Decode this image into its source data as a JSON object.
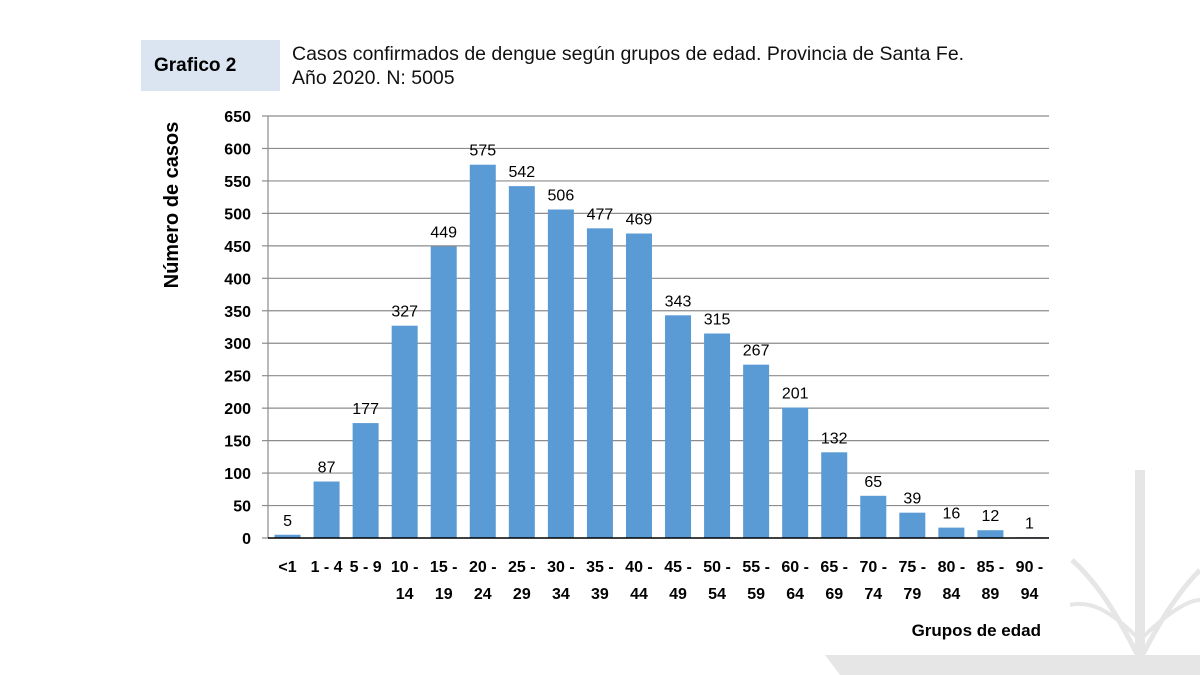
{
  "figure_label": "Grafico 2",
  "title_lines": [
    "Casos confirmados de dengue según grupos de edad. Provincia de Santa Fe.",
    "Año 2020. N: 5005"
  ],
  "colors": {
    "bar": "#5b9bd5",
    "grid": "#8c8c8c",
    "label_box": "#dbe5f1",
    "watermark": "#e6e6e6"
  },
  "chart_data": {
    "type": "bar",
    "title": "Casos confirmados de dengue según grupos de edad. Provincia de Santa Fe. Año 2020. N: 5005",
    "xlabel": "Grupos de edad",
    "ylabel": "Número de casos",
    "ylim": [
      0,
      650
    ],
    "yticks": [
      0,
      50,
      100,
      150,
      200,
      250,
      300,
      350,
      400,
      450,
      500,
      550,
      600,
      650
    ],
    "grid": true,
    "legend": "none",
    "categories": [
      "<1",
      "1 - 4",
      "5 - 9",
      "10 - 14",
      "15 - 19",
      "20 - 24",
      "25 - 29",
      "30 - 34",
      "35 - 39",
      "40 - 44",
      "45 - 49",
      "50 - 54",
      "55 - 59",
      "60 - 64",
      "65 - 69",
      "70 - 74",
      "75 - 79",
      "80 - 84",
      "85 - 89",
      "90 - 94"
    ],
    "tick_label_rows": [
      [
        "<1",
        "1 - 4",
        "5 - 9",
        "10 -",
        "15 -",
        "20 -",
        "25 -",
        "30 -",
        "35 -",
        "40 -",
        "45 -",
        "50 -",
        "55 -",
        "60 -",
        "65 -",
        "70 -",
        "75 -",
        "80 -",
        "85 -",
        "90 -"
      ],
      [
        "",
        "",
        "",
        "14",
        "19",
        "24",
        "29",
        "34",
        "39",
        "44",
        "49",
        "54",
        "59",
        "64",
        "69",
        "74",
        "79",
        "84",
        "89",
        "94"
      ]
    ],
    "values": [
      5,
      87,
      177,
      327,
      449,
      575,
      542,
      506,
      477,
      469,
      343,
      315,
      267,
      201,
      132,
      65,
      39,
      16,
      12,
      1
    ]
  }
}
